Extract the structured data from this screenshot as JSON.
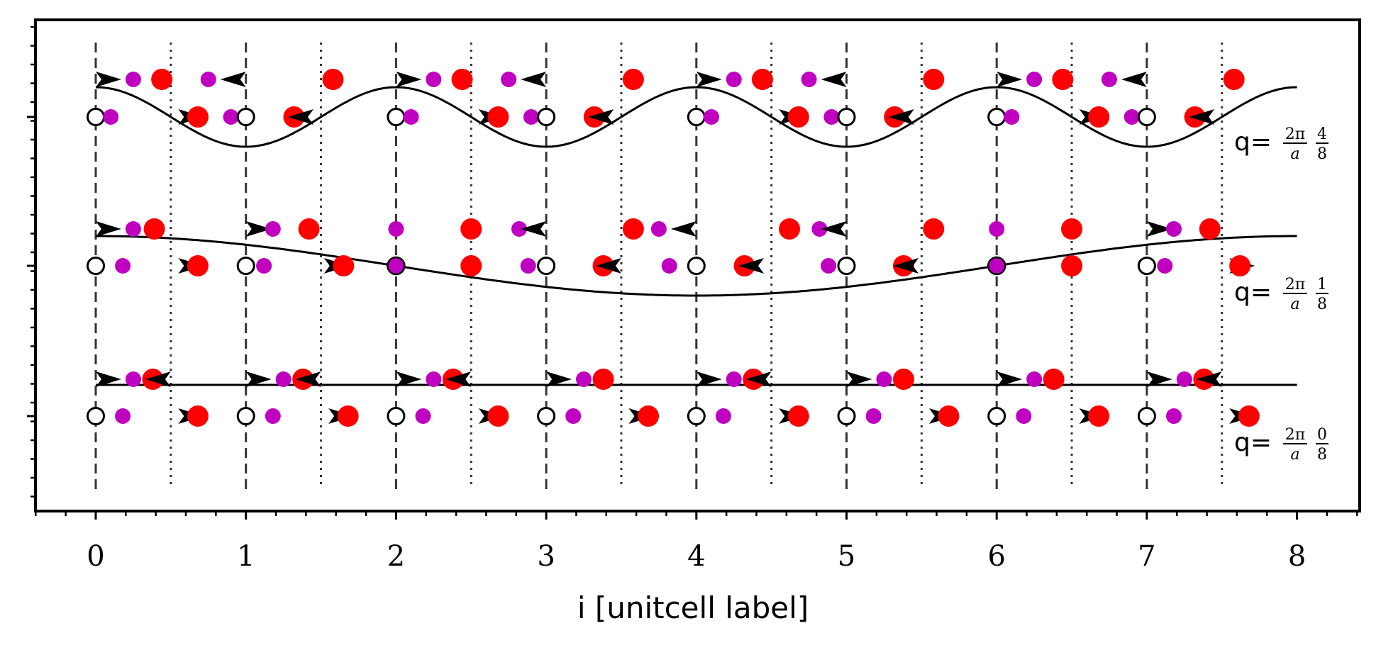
{
  "chart_data": {
    "type": "diagram",
    "xlabel": "i [unitcell label]",
    "xlim": [
      -0.4,
      8.4
    ],
    "x_ticks": [
      "0",
      "1",
      "2",
      "3",
      "4",
      "5",
      "6",
      "7",
      "8"
    ],
    "cell_boundaries": [
      0,
      1,
      2,
      3,
      4,
      5,
      6,
      7
    ],
    "half_cell_lines": [
      0.5,
      1.5,
      2.5,
      3.5,
      4.5,
      5.5,
      6.5,
      7.5
    ],
    "panels": [
      {
        "q_prefix": "q=",
        "q_numerator": "4",
        "q_denominator": "8",
        "q_fraction": 0.5,
        "upper_row": [
          {
            "kind": "arrow",
            "x": 0.0,
            "dir": "right"
          },
          {
            "kind": "small",
            "x": 0.25
          },
          {
            "kind": "large",
            "x": 0.44
          },
          {
            "kind": "small",
            "x": 0.75
          },
          {
            "kind": "arrow",
            "x": 1.0,
            "dir": "left"
          },
          {
            "kind": "large",
            "x": 1.58
          },
          {
            "kind": "arrow",
            "x": 2.0,
            "dir": "right"
          },
          {
            "kind": "small",
            "x": 2.25
          },
          {
            "kind": "large",
            "x": 2.44
          },
          {
            "kind": "small",
            "x": 2.75
          },
          {
            "kind": "arrow",
            "x": 3.0,
            "dir": "left"
          },
          {
            "kind": "large",
            "x": 3.58
          },
          {
            "kind": "arrow",
            "x": 4.0,
            "dir": "right"
          },
          {
            "kind": "small",
            "x": 4.25
          },
          {
            "kind": "large",
            "x": 4.44
          },
          {
            "kind": "small",
            "x": 4.75
          },
          {
            "kind": "arrow",
            "x": 5.0,
            "dir": "left"
          },
          {
            "kind": "large",
            "x": 5.58
          },
          {
            "kind": "arrow",
            "x": 6.0,
            "dir": "right"
          },
          {
            "kind": "small",
            "x": 6.25
          },
          {
            "kind": "large",
            "x": 6.44
          },
          {
            "kind": "small",
            "x": 6.75
          },
          {
            "kind": "arrow",
            "x": 7.0,
            "dir": "left"
          },
          {
            "kind": "large",
            "x": 7.58
          }
        ],
        "lower_row": [
          {
            "kind": "open",
            "x": 0.0
          },
          {
            "kind": "small",
            "x": 0.1
          },
          {
            "kind": "arrow",
            "x": 0.55,
            "dir": "right"
          },
          {
            "kind": "large",
            "x": 0.68
          },
          {
            "kind": "small",
            "x": 0.9
          },
          {
            "kind": "open",
            "x": 1.0
          },
          {
            "kind": "large",
            "x": 1.32
          },
          {
            "kind": "arrow",
            "x": 1.45,
            "dir": "left"
          },
          {
            "kind": "open",
            "x": 2.0
          },
          {
            "kind": "small",
            "x": 2.1
          },
          {
            "kind": "arrow",
            "x": 2.55,
            "dir": "right"
          },
          {
            "kind": "large",
            "x": 2.68
          },
          {
            "kind": "small",
            "x": 2.9
          },
          {
            "kind": "open",
            "x": 3.0
          },
          {
            "kind": "large",
            "x": 3.32
          },
          {
            "kind": "arrow",
            "x": 3.45,
            "dir": "left"
          },
          {
            "kind": "open",
            "x": 4.0
          },
          {
            "kind": "small",
            "x": 4.1
          },
          {
            "kind": "arrow",
            "x": 4.55,
            "dir": "right"
          },
          {
            "kind": "large",
            "x": 4.68
          },
          {
            "kind": "small",
            "x": 4.9
          },
          {
            "kind": "open",
            "x": 5.0
          },
          {
            "kind": "large",
            "x": 5.32
          },
          {
            "kind": "arrow",
            "x": 5.45,
            "dir": "left"
          },
          {
            "kind": "open",
            "x": 6.0
          },
          {
            "kind": "small",
            "x": 6.1
          },
          {
            "kind": "arrow",
            "x": 6.55,
            "dir": "right"
          },
          {
            "kind": "large",
            "x": 6.68
          },
          {
            "kind": "small",
            "x": 6.9
          },
          {
            "kind": "open",
            "x": 7.0
          },
          {
            "kind": "large",
            "x": 7.32
          },
          {
            "kind": "arrow",
            "x": 7.45,
            "dir": "left"
          }
        ]
      },
      {
        "q_prefix": "q=",
        "q_numerator": "1",
        "q_denominator": "8",
        "q_fraction": 0.125,
        "upper_row": [
          {
            "kind": "arrow",
            "x": 0.0,
            "dir": "right"
          },
          {
            "kind": "small",
            "x": 0.25
          },
          {
            "kind": "large",
            "x": 0.39
          },
          {
            "kind": "arrow",
            "x": 1.0,
            "dir": "right"
          },
          {
            "kind": "small",
            "x": 1.18
          },
          {
            "kind": "large",
            "x": 1.42
          },
          {
            "kind": "small",
            "x": 2.0
          },
          {
            "kind": "large",
            "x": 2.5
          },
          {
            "kind": "small",
            "x": 2.82
          },
          {
            "kind": "arrow",
            "x": 3.0,
            "dir": "left"
          },
          {
            "kind": "large",
            "x": 3.58
          },
          {
            "kind": "small",
            "x": 3.75
          },
          {
            "kind": "arrow",
            "x": 4.0,
            "dir": "left"
          },
          {
            "kind": "large",
            "x": 4.62
          },
          {
            "kind": "small",
            "x": 4.82
          },
          {
            "kind": "arrow",
            "x": 5.0,
            "dir": "left"
          },
          {
            "kind": "large",
            "x": 5.58
          },
          {
            "kind": "small",
            "x": 6.0
          },
          {
            "kind": "large",
            "x": 6.5
          },
          {
            "kind": "arrow",
            "x": 7.0,
            "dir": "right"
          },
          {
            "kind": "small",
            "x": 7.18
          },
          {
            "kind": "large",
            "x": 7.42
          }
        ],
        "lower_row": [
          {
            "kind": "open",
            "x": 0.0
          },
          {
            "kind": "small",
            "x": 0.18
          },
          {
            "kind": "arrow",
            "x": 0.55,
            "dir": "right"
          },
          {
            "kind": "large",
            "x": 0.68
          },
          {
            "kind": "open",
            "x": 1.0
          },
          {
            "kind": "small",
            "x": 1.12
          },
          {
            "kind": "arrow",
            "x": 1.52,
            "dir": "right"
          },
          {
            "kind": "large",
            "x": 1.65
          },
          {
            "kind": "purple",
            "x": 2.0
          },
          {
            "kind": "large",
            "x": 2.5
          },
          {
            "kind": "small",
            "x": 2.88
          },
          {
            "kind": "open",
            "x": 3.0
          },
          {
            "kind": "large",
            "x": 3.38
          },
          {
            "kind": "arrow",
            "x": 3.5,
            "dir": "left"
          },
          {
            "kind": "small",
            "x": 3.82
          },
          {
            "kind": "open",
            "x": 4.0
          },
          {
            "kind": "large",
            "x": 4.32
          },
          {
            "kind": "arrow",
            "x": 4.45,
            "dir": "left"
          },
          {
            "kind": "small",
            "x": 4.88
          },
          {
            "kind": "open",
            "x": 5.0
          },
          {
            "kind": "large",
            "x": 5.38
          },
          {
            "kind": "arrow",
            "x": 5.48,
            "dir": "left"
          },
          {
            "kind": "purple",
            "x": 6.0
          },
          {
            "kind": "large",
            "x": 6.5
          },
          {
            "kind": "open",
            "x": 7.0
          },
          {
            "kind": "small",
            "x": 7.12
          },
          {
            "kind": "arrow",
            "x": 7.55,
            "dir": "right"
          },
          {
            "kind": "large",
            "x": 7.62
          }
        ]
      },
      {
        "q_prefix": "q=",
        "q_numerator": "0",
        "q_denominator": "8",
        "q_fraction": 0.0,
        "upper_row": [
          {
            "kind": "arrow",
            "x": 0.0,
            "dir": "right"
          },
          {
            "kind": "small",
            "x": 0.25
          },
          {
            "kind": "large",
            "x": 0.38
          },
          {
            "kind": "arrow",
            "x": 0.5,
            "dir": "left"
          },
          {
            "kind": "arrow",
            "x": 1.0,
            "dir": "right"
          },
          {
            "kind": "small",
            "x": 1.25
          },
          {
            "kind": "large",
            "x": 1.38
          },
          {
            "kind": "arrow",
            "x": 1.5,
            "dir": "left"
          },
          {
            "kind": "arrow",
            "x": 2.0,
            "dir": "right"
          },
          {
            "kind": "small",
            "x": 2.25
          },
          {
            "kind": "large",
            "x": 2.38
          },
          {
            "kind": "arrow",
            "x": 2.5,
            "dir": "left"
          },
          {
            "kind": "arrow",
            "x": 3.0,
            "dir": "right"
          },
          {
            "kind": "small",
            "x": 3.25
          },
          {
            "kind": "large",
            "x": 3.38
          },
          {
            "kind": "arrow",
            "x": 4.0,
            "dir": "right"
          },
          {
            "kind": "small",
            "x": 4.25
          },
          {
            "kind": "large",
            "x": 4.38
          },
          {
            "kind": "arrow",
            "x": 4.5,
            "dir": "left"
          },
          {
            "kind": "arrow",
            "x": 5.0,
            "dir": "right"
          },
          {
            "kind": "small",
            "x": 5.25
          },
          {
            "kind": "large",
            "x": 5.38
          },
          {
            "kind": "arrow",
            "x": 6.0,
            "dir": "right"
          },
          {
            "kind": "small",
            "x": 6.25
          },
          {
            "kind": "large",
            "x": 6.38
          },
          {
            "kind": "arrow",
            "x": 7.0,
            "dir": "right"
          },
          {
            "kind": "small",
            "x": 7.25
          },
          {
            "kind": "large",
            "x": 7.38
          },
          {
            "kind": "arrow",
            "x": 7.5,
            "dir": "left"
          }
        ],
        "lower_row": [
          {
            "kind": "open",
            "x": 0.0
          },
          {
            "kind": "small",
            "x": 0.18
          },
          {
            "kind": "arrow",
            "x": 0.55,
            "dir": "right"
          },
          {
            "kind": "large",
            "x": 0.68
          },
          {
            "kind": "open",
            "x": 1.0
          },
          {
            "kind": "small",
            "x": 1.18
          },
          {
            "kind": "arrow",
            "x": 1.55,
            "dir": "right"
          },
          {
            "kind": "large",
            "x": 1.68
          },
          {
            "kind": "open",
            "x": 2.0
          },
          {
            "kind": "small",
            "x": 2.18
          },
          {
            "kind": "arrow",
            "x": 2.55,
            "dir": "right"
          },
          {
            "kind": "large",
            "x": 2.68
          },
          {
            "kind": "open",
            "x": 3.0
          },
          {
            "kind": "small",
            "x": 3.18
          },
          {
            "kind": "arrow",
            "x": 3.55,
            "dir": "right"
          },
          {
            "kind": "large",
            "x": 3.68
          },
          {
            "kind": "open",
            "x": 4.0
          },
          {
            "kind": "small",
            "x": 4.18
          },
          {
            "kind": "arrow",
            "x": 4.55,
            "dir": "right"
          },
          {
            "kind": "large",
            "x": 4.68
          },
          {
            "kind": "open",
            "x": 5.0
          },
          {
            "kind": "small",
            "x": 5.18
          },
          {
            "kind": "arrow",
            "x": 5.55,
            "dir": "right"
          },
          {
            "kind": "large",
            "x": 5.68
          },
          {
            "kind": "open",
            "x": 6.0
          },
          {
            "kind": "small",
            "x": 6.18
          },
          {
            "kind": "arrow",
            "x": 6.55,
            "dir": "right"
          },
          {
            "kind": "large",
            "x": 6.68
          },
          {
            "kind": "open",
            "x": 7.0
          },
          {
            "kind": "small",
            "x": 7.18
          },
          {
            "kind": "arrow",
            "x": 7.55,
            "dir": "right"
          },
          {
            "kind": "large",
            "x": 7.68
          }
        ]
      }
    ],
    "colors": {
      "large_atom": "#ff0000",
      "small_atom": "#c000c0",
      "open_atom": "#ffffff",
      "arrow": "#000000",
      "line": "#000000"
    }
  }
}
